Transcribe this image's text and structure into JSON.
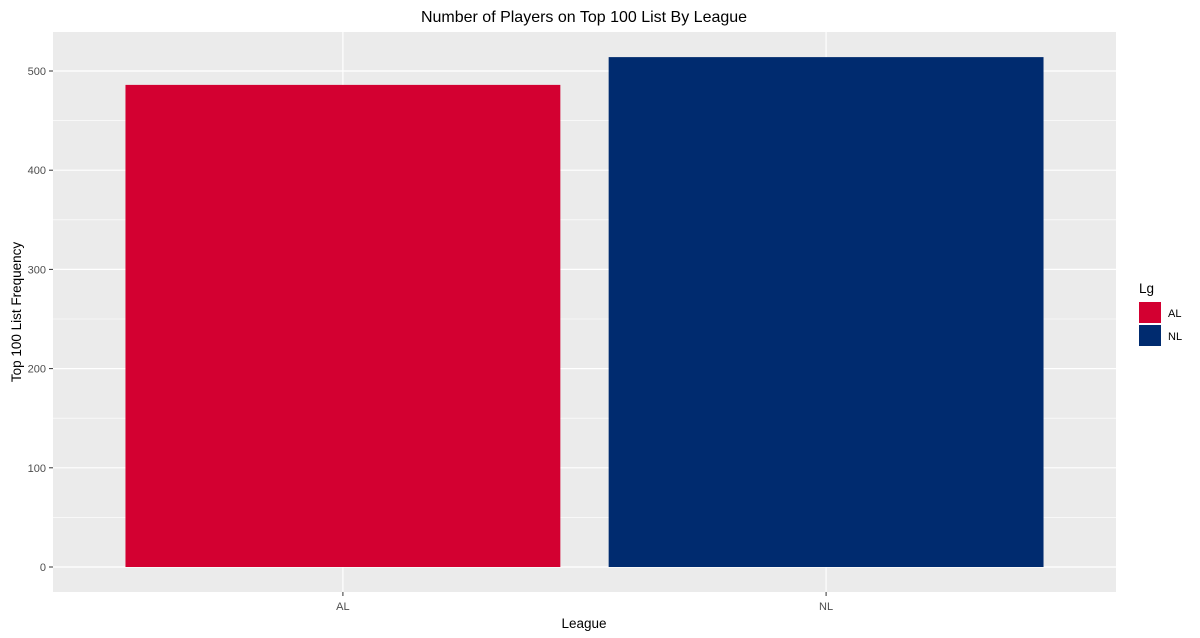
{
  "chart_data": {
    "type": "bar",
    "title": "Number of Players on Top 100 List By League",
    "xlabel": "League",
    "ylabel": "Top 100 List Frequency",
    "categories": [
      "AL",
      "NL"
    ],
    "values": [
      486,
      514
    ],
    "colors": [
      "#D30031",
      "#002B6F"
    ],
    "ylim": [
      0,
      540
    ],
    "yticks": [
      0,
      100,
      200,
      300,
      400,
      500
    ],
    "grid": true,
    "panel_background": "#EBEBEB",
    "legend": {
      "title": "Lg",
      "placement": "right",
      "entries": [
        "AL",
        "NL"
      ]
    }
  }
}
